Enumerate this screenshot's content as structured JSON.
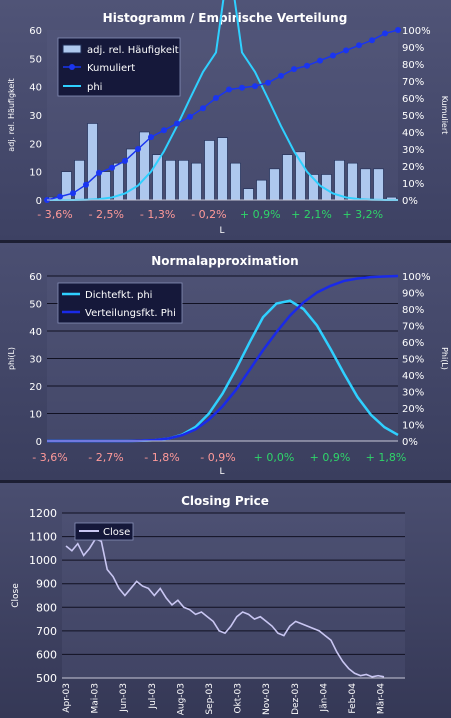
{
  "chart_data": [
    {
      "type": "bar",
      "title": "Histogramm / Empirische Verteilung",
      "xlabel": "L",
      "ylabel": "adj. rel. Häufigkeit",
      "y2label": "Kumuliert",
      "ylim": [
        0,
        60
      ],
      "y2lim": [
        0,
        1
      ],
      "yticks": [
        "0",
        "10",
        "20",
        "30",
        "40",
        "50",
        "60"
      ],
      "y2ticks": [
        "0%",
        "10%",
        "20%",
        "30%",
        "40%",
        "50%",
        "60%",
        "70%",
        "80%",
        "90%",
        "100%"
      ],
      "xtick_labels": [
        "- 3,6%",
        "- 2,5%",
        "- 1,3%",
        "- 0,2%",
        "+ 0,9%",
        "+ 2,1%",
        "+ 3,2%"
      ],
      "neg_color": "#ff9a9a",
      "pos_color": "#2fd46a",
      "grid": false,
      "legend_position": "top-left",
      "series": [
        {
          "name": "adj. rel. Häufigkeit",
          "type": "bar",
          "color": "#aec8ee",
          "values": [
            1,
            10,
            14,
            27,
            10,
            13,
            18,
            24,
            16,
            14,
            14,
            13,
            21,
            22,
            13,
            4,
            7,
            11,
            16,
            17,
            9,
            9,
            14,
            13,
            11,
            11,
            1
          ]
        },
        {
          "name": "Kumuliert",
          "type": "line",
          "axis": "secondary",
          "color": "#1a35f0",
          "values": [
            0.0,
            0.02,
            0.04,
            0.09,
            0.16,
            0.19,
            0.23,
            0.3,
            0.37,
            0.41,
            0.45,
            0.49,
            0.54,
            0.6,
            0.65,
            0.66,
            0.67,
            0.69,
            0.73,
            0.77,
            0.79,
            0.82,
            0.85,
            0.88,
            0.91,
            0.94,
            0.98,
            1.0
          ]
        },
        {
          "name": "phi",
          "type": "line",
          "color": "#2fd0ff",
          "values": [
            0.0,
            0.0,
            0.0,
            0.1,
            0.3,
            0.9,
            2.3,
            5.1,
            10.0,
            17.2,
            26.1,
            35.8,
            45.2,
            52.1,
            85.0,
            52.1,
            45.2,
            35.8,
            26.1,
            17.2,
            10.0,
            5.1,
            2.3,
            0.9,
            0.3,
            0.1,
            0.0,
            0.0
          ]
        }
      ]
    },
    {
      "type": "line",
      "title": "Normalapproximation",
      "xlabel": "L",
      "ylabel": "phi(L)",
      "y2label": "Phi(L)",
      "ylim": [
        0,
        60
      ],
      "y2lim": [
        0,
        1
      ],
      "yticks": [
        "0",
        "10",
        "20",
        "30",
        "40",
        "50",
        "60"
      ],
      "y2ticks": [
        "0%",
        "10%",
        "20%",
        "30%",
        "40%",
        "50%",
        "60%",
        "70%",
        "80%",
        "90%",
        "100%"
      ],
      "xtick_labels": [
        "- 3,6%",
        "- 2,7%",
        "- 1,8%",
        "- 0,9%",
        "+ 0,0%",
        "+ 0,9%",
        "+ 1,8%"
      ],
      "neg_color": "#ff9a9a",
      "pos_color": "#2fd46a",
      "grid": true,
      "legend_position": "top-left",
      "series": [
        {
          "name": "Dichtefkt. phi",
          "color": "#2fd0ff",
          "values": [
            0,
            0,
            0,
            0,
            0,
            0,
            0,
            0.1,
            0.3,
            0.9,
            2.3,
            5.1,
            10.0,
            17.2,
            26.1,
            35.8,
            45.0,
            50.0,
            51.0,
            48.0,
            42.0,
            33.5,
            24.5,
            16.0,
            9.5,
            5.0,
            2.2
          ]
        },
        {
          "name": "Verteilungsfkt. Phi",
          "color": "#1a2ae8",
          "axis": "secondary",
          "values": [
            0,
            0,
            0,
            0,
            0,
            0,
            0,
            0.002,
            0.006,
            0.015,
            0.035,
            0.07,
            0.13,
            0.21,
            0.31,
            0.43,
            0.55,
            0.66,
            0.76,
            0.84,
            0.9,
            0.94,
            0.97,
            0.985,
            0.993,
            0.997,
            1.0
          ]
        }
      ]
    },
    {
      "type": "line",
      "title": "Closing Price",
      "xlabel": "",
      "ylabel": "Close",
      "ylim": [
        500,
        1200
      ],
      "yticks": [
        "500",
        "600",
        "700",
        "800",
        "900",
        "1000",
        "1100",
        "1200"
      ],
      "xtick_labels": [
        "Apr-03",
        "Mai-03",
        "Jun-03",
        "Jul-03",
        "Aug-03",
        "Sep-03",
        "Okt-03",
        "Nov-03",
        "Dez-03",
        "Jän-04",
        "Feb-04",
        "Mär-04"
      ],
      "grid": true,
      "legend_position": "top-left",
      "series": [
        {
          "name": "Close",
          "color": "#c9c6f2",
          "values": [
            1060,
            1040,
            1070,
            1020,
            1050,
            1090,
            1080,
            960,
            930,
            880,
            850,
            880,
            910,
            890,
            880,
            850,
            880,
            840,
            810,
            830,
            800,
            790,
            770,
            780,
            760,
            740,
            700,
            690,
            720,
            760,
            780,
            770,
            750,
            760,
            740,
            720,
            690,
            680,
            720,
            740,
            730,
            720,
            710,
            700,
            680,
            660,
            610,
            570,
            540,
            520,
            510,
            515,
            505,
            510,
            505
          ]
        }
      ]
    }
  ]
}
